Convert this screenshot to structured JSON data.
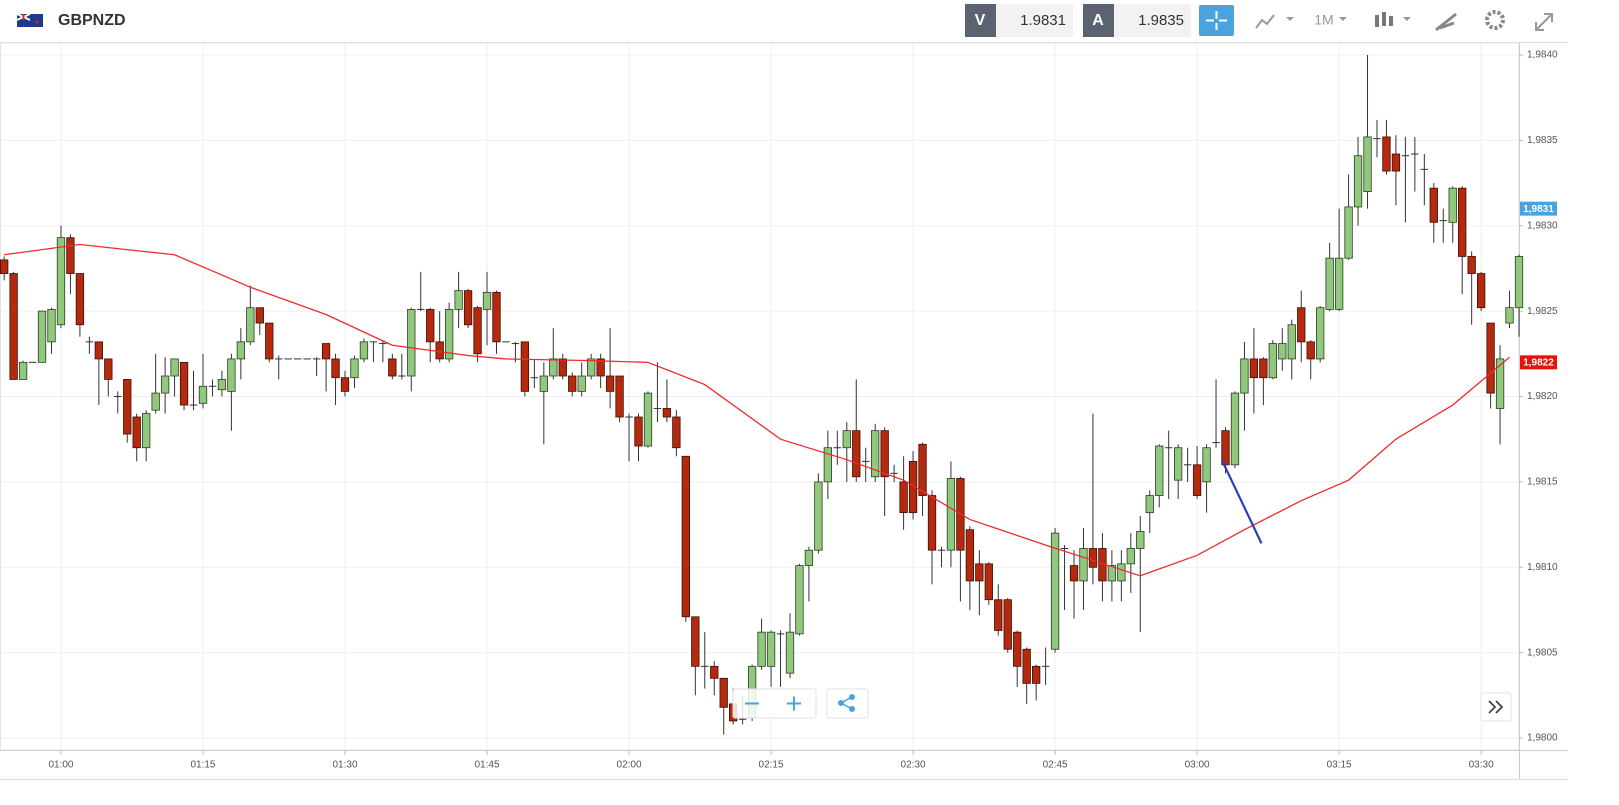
{
  "header": {
    "symbol": "GBPNZD",
    "bid_label": "V",
    "bid": "1.9831",
    "ask_label": "A",
    "ask": "1.9835",
    "timeframe": "1M"
  },
  "chart_data": {
    "type": "candlestick",
    "x": [
      54,
      55,
      56,
      57,
      58,
      59,
      60,
      61,
      62,
      63,
      64,
      65,
      66,
      67,
      68,
      69,
      70,
      71,
      72,
      73,
      74,
      75,
      76,
      77,
      78,
      79,
      80,
      81,
      82,
      83,
      84,
      85,
      86,
      87,
      88,
      89,
      90,
      91,
      92,
      93,
      94,
      95,
      96,
      97,
      98,
      99,
      100,
      101,
      102,
      103,
      104,
      105,
      106,
      107,
      108,
      109,
      110,
      111,
      112,
      113,
      114,
      115,
      116,
      117,
      118,
      119,
      120,
      121,
      122,
      123,
      124,
      125,
      126,
      127,
      128,
      129,
      130,
      131,
      132,
      133,
      134,
      135,
      136,
      137,
      138,
      139,
      140,
      141,
      142,
      143,
      144,
      145,
      146,
      147,
      148,
      149,
      150,
      151,
      152,
      153,
      154,
      155,
      156,
      157,
      158,
      159,
      160,
      161,
      162,
      163,
      164,
      165,
      166,
      167,
      168,
      169,
      170,
      171,
      172,
      173,
      174,
      175,
      176,
      177,
      178,
      179,
      180,
      181,
      182,
      183,
      184,
      185,
      186,
      187,
      188,
      189,
      190,
      191,
      192,
      193,
      194,
      195,
      196,
      197,
      198,
      199,
      200,
      201,
      202,
      203,
      204,
      205,
      206,
      207,
      208,
      209,
      210,
      211,
      212,
      213,
      214
    ],
    "open": [
      1.9828,
      1.98272,
      1.9821,
      1.9822,
      1.9822,
      1.98232,
      1.98242,
      1.98293,
      1.98272,
      1.98232,
      1.98232,
      1.98222,
      1.982,
      1.9821,
      1.98188,
      1.9817,
      1.98192,
      1.98202,
      1.98212,
      1.9822,
      1.98195,
      1.98196,
      1.98206,
      1.98204,
      1.98203,
      1.98222,
      1.98232,
      1.98252,
      1.98243,
      1.98222,
      1.98222,
      1.98222,
      1.98222,
      1.98222,
      1.98231,
      1.98222,
      1.98211,
      1.98211,
      1.98222,
      1.98232,
      1.98231,
      1.98222,
      1.98212,
      1.98212,
      1.98251,
      1.98251,
      1.98232,
      1.98222,
      1.98251,
      1.98262,
      1.98252,
      1.98251,
      1.98261,
      1.98232,
      1.98231,
      1.98232,
      1.98211,
      1.98203,
      1.98212,
      1.98222,
      1.98212,
      1.98203,
      1.98212,
      1.98222,
      1.98212,
      1.98212,
      1.98188,
      1.98188,
      1.98171,
      1.98193,
      1.98193,
      1.98188,
      1.98165,
      1.98071,
      1.98042,
      1.98042,
      1.98035,
      1.9802,
      1.98011,
      1.98012,
      1.98042,
      1.98042,
      1.98061,
      1.98038,
      1.98061,
      1.98101,
      1.9811,
      1.9815,
      1.9817,
      1.9817,
      1.9818,
      1.98162,
      1.98153,
      1.9818,
      1.98155,
      1.9815,
      1.98162,
      1.98172,
      1.98142,
      1.9811,
      1.9811,
      1.98152,
      1.98122,
      1.98102,
      1.98102,
      1.98081,
      1.98081,
      1.98062,
      1.98052,
      1.98042,
      1.98042,
      1.98052,
      1.98111,
      1.98101,
      1.98092,
      1.98111,
      1.98111,
      1.98092,
      1.98092,
      1.98102,
      1.98111,
      1.98132,
      1.98142,
      1.9817,
      1.98151,
      1.9816,
      1.9816,
      1.9815,
      1.98173,
      1.9818,
      1.9816,
      1.98202,
      1.98222,
      1.98222,
      1.98211,
      1.98222,
      1.98222,
      1.98252,
      1.98232,
      1.98222,
      1.98251,
      1.98251,
      1.98281,
      1.98311,
      1.9832,
      1.98351,
      1.98352,
      1.98342,
      1.98341,
      1.98342,
      1.98333,
      1.98322,
      1.98303,
      1.98302,
      1.98322,
      1.98282,
      1.98272,
      1.98243,
      1.98193,
      1.98243,
      1.98252
    ],
    "high": [
      1.98282,
      1.98273,
      1.98221,
      1.9822,
      1.9825,
      1.98252,
      1.983,
      1.98295,
      1.98272,
      1.98235,
      1.98232,
      1.98222,
      1.98203,
      1.9821,
      1.9819,
      1.98192,
      1.98225,
      1.98223,
      1.98222,
      1.9822,
      1.98215,
      1.98225,
      1.9821,
      1.98215,
      1.98225,
      1.9824,
      1.98265,
      1.98252,
      1.98243,
      1.98224,
      1.98222,
      1.98222,
      1.98222,
      1.98223,
      1.98231,
      1.98225,
      1.98215,
      1.98224,
      1.98234,
      1.98232,
      1.98233,
      1.98225,
      1.98225,
      1.98252,
      1.98273,
      1.98252,
      1.9825,
      1.98255,
      1.98273,
      1.98263,
      1.98253,
      1.98273,
      1.98262,
      1.98232,
      1.98232,
      1.98232,
      1.98222,
      1.9822,
      1.9824,
      1.98225,
      1.98214,
      1.9822,
      1.98225,
      1.98225,
      1.9824,
      1.98212,
      1.9819,
      1.9819,
      1.98203,
      1.9822,
      1.9821,
      1.98192,
      1.98165,
      1.98071,
      1.98062,
      1.98045,
      1.98035,
      1.98029,
      1.98025,
      1.98043,
      1.9807,
      1.98063,
      1.98063,
      1.98073,
      1.98102,
      1.98112,
      1.98155,
      1.9818,
      1.9818,
      1.98185,
      1.9821,
      1.9817,
      1.98184,
      1.98182,
      1.9816,
      1.98165,
      1.98168,
      1.98173,
      1.98145,
      1.98112,
      1.98162,
      1.98153,
      1.98124,
      1.9811,
      1.98103,
      1.9809,
      1.98082,
      1.98063,
      1.98053,
      1.98043,
      1.98053,
      1.98123,
      1.98113,
      1.9811,
      1.98123,
      1.9819,
      1.9812,
      1.9811,
      1.9811,
      1.9812,
      1.9813,
      1.98145,
      1.98172,
      1.9818,
      1.98172,
      1.9817,
      1.98171,
      1.98172,
      1.9821,
      1.98182,
      1.98203,
      1.98232,
      1.9824,
      1.98223,
      1.98233,
      1.9824,
      1.98245,
      1.98262,
      1.98233,
      1.98253,
      1.9829,
      1.9831,
      1.9833,
      1.98352,
      1.984,
      1.98362,
      1.98362,
      1.98353,
      1.98352,
      1.98352,
      1.98342,
      1.98325,
      1.9831,
      1.98323,
      1.98323,
      1.98285,
      1.98273,
      1.98243,
      1.9823,
      1.98262,
      1.98283
    ],
    "low": [
      1.98268,
      1.9821,
      1.9821,
      1.9822,
      1.9822,
      1.98225,
      1.9824,
      1.9826,
      1.98235,
      1.98225,
      1.98195,
      1.982,
      1.9819,
      1.98173,
      1.98162,
      1.98162,
      1.9819,
      1.9819,
      1.982,
      1.98192,
      1.98192,
      1.98193,
      1.982,
      1.982,
      1.9818,
      1.9821,
      1.9823,
      1.98236,
      1.9822,
      1.9821,
      1.98222,
      1.98222,
      1.98222,
      1.98212,
      1.98203,
      1.98195,
      1.982,
      1.98205,
      1.9822,
      1.9822,
      1.9822,
      1.9821,
      1.9821,
      1.98203,
      1.9825,
      1.9822,
      1.9822,
      1.9822,
      1.9824,
      1.9824,
      1.9822,
      1.9823,
      1.98225,
      1.98232,
      1.9822,
      1.982,
      1.98205,
      1.98172,
      1.9821,
      1.9821,
      1.982,
      1.982,
      1.9821,
      1.98205,
      1.98193,
      1.98185,
      1.98162,
      1.98162,
      1.9817,
      1.98185,
      1.98185,
      1.98165,
      1.98068,
      1.98025,
      1.98029,
      1.98025,
      1.98002,
      1.98008,
      1.98008,
      1.9801,
      1.9804,
      1.9803,
      1.9803,
      1.98035,
      1.9806,
      1.9808,
      1.98108,
      1.9814,
      1.9816,
      1.9815,
      1.9815,
      1.9815,
      1.9815,
      1.9813,
      1.9815,
      1.98122,
      1.98128,
      1.9813,
      1.9809,
      1.981,
      1.981,
      1.9808,
      1.98075,
      1.98072,
      1.98078,
      1.9806,
      1.9805,
      1.9803,
      1.9802,
      1.98022,
      1.98031,
      1.9805,
      1.98075,
      1.9807,
      1.98075,
      1.9809,
      1.9808,
      1.9808,
      1.9808,
      1.98085,
      1.98062,
      1.9812,
      1.98135,
      1.9814,
      1.9814,
      1.9815,
      1.9814,
      1.98132,
      1.9817,
      1.98155,
      1.98158,
      1.9818,
      1.9819,
      1.98195,
      1.9821,
      1.98215,
      1.9821,
      1.9822,
      1.9821,
      1.9822,
      1.9825,
      1.9825,
      1.9828,
      1.983,
      1.9831,
      1.9834,
      1.9833,
      1.98312,
      1.98302,
      1.9832,
      1.98312,
      1.9829,
      1.9829,
      1.9829,
      1.9826,
      1.98242,
      1.9825,
      1.98193,
      1.98172,
      1.9824,
      1.98235
    ],
    "close": [
      1.98272,
      1.9821,
      1.9822,
      1.9822,
      1.9825,
      1.98251,
      1.98293,
      1.98272,
      1.98242,
      1.98232,
      1.98222,
      1.9821,
      1.982,
      1.98178,
      1.9817,
      1.9819,
      1.98202,
      1.98212,
      1.98222,
      1.98195,
      1.98195,
      1.98206,
      1.98206,
      1.9821,
      1.98222,
      1.98232,
      1.98252,
      1.98243,
      1.98222,
      1.98222,
      1.98222,
      1.98222,
      1.98222,
      1.98222,
      1.98222,
      1.98211,
      1.98203,
      1.98222,
      1.98232,
      1.98232,
      1.98231,
      1.98212,
      1.98212,
      1.98251,
      1.98251,
      1.98232,
      1.98222,
      1.98251,
      1.98262,
      1.98242,
      1.98225,
      1.98261,
      1.98232,
      1.98232,
      1.98231,
      1.98203,
      1.98211,
      1.98212,
      1.98222,
      1.98212,
      1.98203,
      1.98212,
      1.98222,
      1.98212,
      1.98203,
      1.98188,
      1.98188,
      1.98171,
      1.98202,
      1.98193,
      1.98188,
      1.9817,
      1.98071,
      1.98042,
      1.98042,
      1.98035,
      1.98018,
      1.9801,
      1.98011,
      1.98042,
      1.98062,
      1.98062,
      1.98061,
      1.98062,
      1.98101,
      1.9811,
      1.9815,
      1.9817,
      1.9817,
      1.9818,
      1.98153,
      1.98162,
      1.9818,
      1.98153,
      1.98155,
      1.98132,
      1.98132,
      1.98142,
      1.9811,
      1.9811,
      1.98152,
      1.9811,
      1.98092,
      1.98092,
      1.98081,
      1.98063,
      1.98052,
      1.98042,
      1.98032,
      1.98032,
      1.98042,
      1.9812,
      1.98111,
      1.98092,
      1.98111,
      1.981,
      1.98092,
      1.98101,
      1.98102,
      1.98111,
      1.98121,
      1.98142,
      1.98171,
      1.9817,
      1.9817,
      1.9816,
      1.98142,
      1.9817,
      1.98173,
      1.9816,
      1.98202,
      1.98222,
      1.98211,
      1.98211,
      1.98231,
      1.98231,
      1.98242,
      1.98232,
      1.98222,
      1.98252,
      1.98281,
      1.98281,
      1.98311,
      1.98341,
      1.98352,
      1.98351,
      1.98332,
      1.98332,
      1.98341,
      1.98342,
      1.98333,
      1.98302,
      1.98303,
      1.98322,
      1.98282,
      1.98272,
      1.98252,
      1.98202,
      1.98222,
      1.98252,
      1.98282
    ],
    "up_color": "#90c97e",
    "down_color": "#b52a0e",
    "moving_average": {
      "color": "#f02a2a",
      "x": [
        54,
        62,
        72,
        80,
        88,
        95,
        103,
        107,
        116,
        122,
        128,
        136,
        143,
        149,
        156,
        164,
        169,
        174,
        180,
        185,
        191,
        196,
        201,
        207,
        213
      ],
      "values": [
        1.98283,
        1.98289,
        1.98283,
        1.98264,
        1.98248,
        1.9823,
        1.98224,
        1.98222,
        1.98221,
        1.9822,
        1.98207,
        1.98175,
        1.98163,
        1.98151,
        1.98128,
        1.98113,
        1.98104,
        1.98095,
        1.98107,
        1.98122,
        1.98139,
        1.98151,
        1.98175,
        1.98195,
        1.98223
      ]
    },
    "drawing": {
      "color": "#2b3fb8",
      "x": [
        182.6,
        186.8
      ],
      "values": [
        1.98163,
        1.98114
      ]
    },
    "price_tags": [
      {
        "value": 1.9831,
        "label": "1,9831",
        "color": "#4aa3df"
      },
      {
        "value": 1.9822,
        "label": "1,9822",
        "color": "#e8120c"
      }
    ],
    "xlim": [
      53.56,
      214
    ],
    "ylim": [
      1.97993,
      1.98407
    ],
    "xticks": [
      {
        "value": 60,
        "label": "01:00"
      },
      {
        "value": 75,
        "label": "01:15"
      },
      {
        "value": 90,
        "label": "01:30"
      },
      {
        "value": 105,
        "label": "01:45"
      },
      {
        "value": 120,
        "label": "02:00"
      },
      {
        "value": 135,
        "label": "02:15"
      },
      {
        "value": 150,
        "label": "02:30"
      },
      {
        "value": 165,
        "label": "02:45"
      },
      {
        "value": 180,
        "label": "03:00"
      },
      {
        "value": 195,
        "label": "03:15"
      },
      {
        "value": 210,
        "label": "03:30"
      }
    ],
    "yticks": [
      {
        "value": 1.98,
        "label": "1,9800"
      },
      {
        "value": 1.9805,
        "label": "1,9805"
      },
      {
        "value": 1.981,
        "label": "1,9810"
      },
      {
        "value": 1.9815,
        "label": "1,9815"
      },
      {
        "value": 1.982,
        "label": "1,9820"
      },
      {
        "value": 1.9825,
        "label": "1,9825"
      },
      {
        "value": 1.983,
        "label": "1,9830"
      },
      {
        "value": 1.9835,
        "label": "1,9835"
      },
      {
        "value": 1.984,
        "label": "1,9840"
      }
    ],
    "grid": true
  }
}
